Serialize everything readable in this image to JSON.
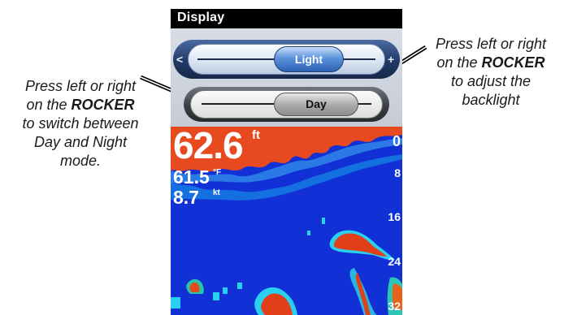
{
  "screen": {
    "title": "Display",
    "backlight": {
      "label": "Light",
      "left_arrow": "<",
      "right_arrow": "+"
    },
    "mode": {
      "label": "Day"
    }
  },
  "sonar": {
    "depth": "62.6",
    "depth_unit": "ft",
    "water_temp": "61.5",
    "water_temp_unit": "°F",
    "speed": "8.7",
    "speed_unit": "kt",
    "scale": [
      "0",
      "8",
      "16",
      "24",
      "32"
    ]
  },
  "callouts": {
    "left": {
      "line1": "Press left or right",
      "line2_prefix": "on the ",
      "line2_bold": "ROCKER",
      "line3": "to switch between",
      "line4": "Day and Night",
      "line5": "mode."
    },
    "right": {
      "line1": "Press left or right",
      "line2_prefix": "on the ",
      "line2_bold": "ROCKER",
      "line3": "to adjust the",
      "line4": "backlight"
    }
  }
}
